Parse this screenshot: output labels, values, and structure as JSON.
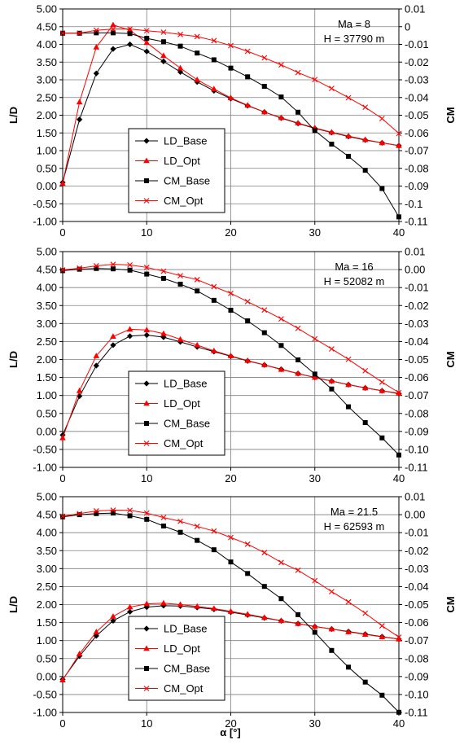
{
  "xlabel": "α [°]",
  "chart_data": [
    {
      "type": "line",
      "annotation": [
        "Ma = 8",
        "H = 37790 m"
      ],
      "ylabel": "L/D",
      "y2label": "CM",
      "xlim": [
        0,
        40
      ],
      "ylim": [
        -1.0,
        5.0
      ],
      "y2lim": [
        -0.11,
        0.01
      ],
      "xticks": [
        "0",
        "10",
        "20",
        "30",
        "40"
      ],
      "yticks": [
        "5.00",
        "4.50",
        "4.00",
        "3.50",
        "3.00",
        "2.50",
        "2.00",
        "1.50",
        "1.00",
        "0.50",
        "0.00",
        "-0.50",
        "-1.00"
      ],
      "y2ticks": [
        "0.01",
        "0",
        "-0.01",
        "-0.02",
        "-0.03",
        "-0.04",
        "-0.05",
        "-0.06",
        "-0.07",
        "-0.08",
        "-0.09",
        "-0.1",
        "-0.11"
      ],
      "grid": true,
      "legend_position": "lower-left",
      "series": [
        {
          "name": "LD_Base",
          "axis": "left",
          "color": "#000000",
          "marker": "diamond",
          "x": [
            0,
            2,
            4,
            6,
            8,
            10,
            12,
            14,
            16,
            18,
            20,
            22,
            24,
            26,
            28,
            30,
            32,
            34,
            36,
            38,
            40
          ],
          "y": [
            0.1,
            1.88,
            3.18,
            3.87,
            4.0,
            3.8,
            3.52,
            3.22,
            2.94,
            2.69,
            2.47,
            2.27,
            2.09,
            1.92,
            1.77,
            1.63,
            1.51,
            1.4,
            1.3,
            1.22,
            1.14
          ]
        },
        {
          "name": "LD_Opt",
          "axis": "left",
          "color": "#ff0000",
          "marker": "triangle",
          "x": [
            0,
            2,
            4,
            6,
            8,
            10,
            12,
            14,
            16,
            18,
            20,
            22,
            24,
            26,
            28,
            30,
            32,
            34,
            36,
            38,
            40
          ],
          "y": [
            0.07,
            2.37,
            3.92,
            4.55,
            4.4,
            4.05,
            3.68,
            3.33,
            3.0,
            2.74,
            2.49,
            2.28,
            2.09,
            1.93,
            1.78,
            1.64,
            1.52,
            1.41,
            1.31,
            1.22,
            1.14
          ]
        },
        {
          "name": "CM_Base",
          "axis": "right",
          "color": "#000000",
          "marker": "square",
          "x": [
            0,
            2,
            4,
            6,
            8,
            10,
            12,
            14,
            16,
            18,
            20,
            22,
            24,
            26,
            28,
            30,
            32,
            34,
            36,
            38,
            40
          ],
          "y": [
            -0.0037,
            -0.0037,
            -0.0035,
            -0.0035,
            -0.0039,
            -0.0066,
            -0.0085,
            -0.011,
            -0.0149,
            -0.0187,
            -0.0234,
            -0.0283,
            -0.0337,
            -0.0397,
            -0.0483,
            -0.0587,
            -0.0663,
            -0.0732,
            -0.0811,
            -0.0914,
            -0.1074
          ]
        },
        {
          "name": "CM_Opt",
          "axis": "right",
          "color": "#ff0000",
          "marker": "x",
          "x": [
            0,
            2,
            4,
            6,
            8,
            10,
            12,
            14,
            16,
            18,
            20,
            22,
            24,
            26,
            28,
            30,
            32,
            34,
            36,
            38,
            40
          ],
          "y": [
            -0.0037,
            -0.0037,
            -0.002,
            -0.0014,
            -0.0013,
            -0.0023,
            -0.0031,
            -0.0044,
            -0.0056,
            -0.0079,
            -0.0107,
            -0.0139,
            -0.0176,
            -0.0216,
            -0.0259,
            -0.0299,
            -0.0349,
            -0.0401,
            -0.0455,
            -0.0519,
            -0.0603
          ]
        }
      ]
    },
    {
      "type": "line",
      "annotation": [
        "Ma = 16",
        "H = 52082 m"
      ],
      "ylabel": "L/D",
      "y2label": "CM",
      "xlim": [
        0,
        40
      ],
      "ylim": [
        -1.0,
        5.0
      ],
      "y2lim": [
        -0.11,
        0.01
      ],
      "xticks": [
        "0",
        "10",
        "20",
        "30",
        "40"
      ],
      "yticks": [
        "5.00",
        "4.50",
        "4.00",
        "3.50",
        "3.00",
        "2.50",
        "2.00",
        "1.50",
        "1.00",
        "0.50",
        "0.00",
        "-0.50",
        "-1.00"
      ],
      "y2ticks": [
        "0.01",
        "0.00",
        "-0.01",
        "-0.02",
        "-0.03",
        "-0.04",
        "-0.05",
        "-0.06",
        "-0.07",
        "-0.08",
        "-0.09",
        "-0.10",
        "-0.11"
      ],
      "grid": true,
      "legend_position": "lower-left",
      "series": [
        {
          "name": "LD_Base",
          "axis": "left",
          "color": "#000000",
          "marker": "diamond",
          "x": [
            0,
            2,
            4,
            6,
            8,
            10,
            12,
            14,
            16,
            18,
            20,
            22,
            24,
            26,
            28,
            30,
            32,
            34,
            36,
            38,
            40
          ],
          "y": [
            -0.1,
            0.98,
            1.83,
            2.4,
            2.65,
            2.68,
            2.62,
            2.49,
            2.35,
            2.22,
            2.09,
            1.96,
            1.85,
            1.73,
            1.61,
            1.5,
            1.4,
            1.3,
            1.21,
            1.13,
            1.05
          ]
        },
        {
          "name": "LD_Opt",
          "axis": "left",
          "color": "#ff0000",
          "marker": "triangle",
          "x": [
            0,
            2,
            4,
            6,
            8,
            10,
            12,
            14,
            16,
            18,
            20,
            22,
            24,
            26,
            28,
            30,
            32,
            34,
            36,
            38,
            40
          ],
          "y": [
            -0.18,
            1.13,
            2.1,
            2.64,
            2.84,
            2.82,
            2.72,
            2.56,
            2.4,
            2.24,
            2.1,
            1.97,
            1.85,
            1.72,
            1.61,
            1.5,
            1.4,
            1.3,
            1.21,
            1.13,
            1.06
          ]
        },
        {
          "name": "CM_Base",
          "axis": "right",
          "color": "#000000",
          "marker": "square",
          "x": [
            0,
            2,
            4,
            6,
            8,
            10,
            12,
            14,
            16,
            18,
            20,
            22,
            24,
            26,
            28,
            30,
            32,
            34,
            36,
            38,
            40
          ],
          "y": [
            -0.0006,
            0.0002,
            0.0006,
            0.0004,
            -0.0003,
            -0.0025,
            -0.0049,
            -0.0081,
            -0.0119,
            -0.0171,
            -0.0226,
            -0.0285,
            -0.0351,
            -0.0422,
            -0.0502,
            -0.0581,
            -0.0664,
            -0.0763,
            -0.0851,
            -0.0936,
            -0.1031
          ]
        },
        {
          "name": "CM_Opt",
          "axis": "right",
          "color": "#ff0000",
          "marker": "x",
          "x": [
            0,
            2,
            4,
            6,
            8,
            10,
            12,
            14,
            16,
            18,
            20,
            22,
            24,
            26,
            28,
            30,
            32,
            34,
            36,
            38,
            40
          ],
          "y": [
            -0.0002,
            0.0008,
            0.0021,
            0.0029,
            0.0026,
            0.0012,
            -0.0009,
            -0.0034,
            -0.0056,
            -0.0095,
            -0.0132,
            -0.0178,
            -0.0225,
            -0.0274,
            -0.0327,
            -0.0385,
            -0.0441,
            -0.0499,
            -0.0563,
            -0.0626,
            -0.0684
          ]
        }
      ]
    },
    {
      "type": "line",
      "annotation": [
        "Ma = 21.5",
        "H = 62593 m"
      ],
      "ylabel": "L/D",
      "y2label": "CM",
      "xlim": [
        0,
        40
      ],
      "ylim": [
        -1.0,
        5.0
      ],
      "y2lim": [
        -0.11,
        0.01
      ],
      "xticks": [
        "0",
        "10",
        "20",
        "30",
        "40"
      ],
      "yticks": [
        "5.00",
        "4.50",
        "4.00",
        "3.50",
        "3.00",
        "2.50",
        "2.00",
        "1.50",
        "1.00",
        "0.50",
        "0.00",
        "-0.50",
        "-1.00"
      ],
      "y2ticks": [
        "0.01",
        "0.00",
        "-0.01",
        "-0.02",
        "-0.03",
        "-0.04",
        "-0.05",
        "-0.06",
        "-0.07",
        "-0.08",
        "-0.09",
        "-0.10",
        "-0.11"
      ],
      "grid": true,
      "legend_position": "lower-left",
      "series": [
        {
          "name": "LD_Base",
          "axis": "left",
          "color": "#000000",
          "marker": "diamond",
          "x": [
            0,
            2,
            4,
            6,
            8,
            10,
            12,
            14,
            16,
            18,
            20,
            22,
            24,
            26,
            28,
            30,
            32,
            34,
            36,
            38,
            40
          ],
          "y": [
            -0.08,
            0.57,
            1.13,
            1.55,
            1.8,
            1.93,
            1.97,
            1.96,
            1.92,
            1.87,
            1.79,
            1.71,
            1.63,
            1.55,
            1.47,
            1.39,
            1.32,
            1.25,
            1.18,
            1.11,
            1.04
          ]
        },
        {
          "name": "LD_Opt",
          "axis": "left",
          "color": "#ff0000",
          "marker": "triangle",
          "x": [
            0,
            2,
            4,
            6,
            8,
            10,
            12,
            14,
            16,
            18,
            20,
            22,
            24,
            26,
            28,
            30,
            32,
            34,
            36,
            38,
            40
          ],
          "y": [
            -0.1,
            0.63,
            1.24,
            1.67,
            1.93,
            2.02,
            2.04,
            2.0,
            1.95,
            1.89,
            1.81,
            1.73,
            1.64,
            1.55,
            1.47,
            1.39,
            1.32,
            1.24,
            1.17,
            1.1,
            1.04
          ]
        },
        {
          "name": "CM_Base",
          "axis": "right",
          "color": "#000000",
          "marker": "square",
          "x": [
            0,
            2,
            4,
            6,
            8,
            10,
            12,
            14,
            16,
            18,
            20,
            22,
            24,
            26,
            28,
            30,
            32,
            34,
            36,
            38,
            40
          ],
          "y": [
            -0.0012,
            0.0,
            0.0006,
            0.0009,
            -0.0006,
            -0.0026,
            -0.0063,
            -0.0098,
            -0.0143,
            -0.0195,
            -0.0263,
            -0.0327,
            -0.0399,
            -0.0467,
            -0.0556,
            -0.0654,
            -0.0755,
            -0.0848,
            -0.0931,
            -0.1004,
            -0.1099
          ]
        },
        {
          "name": "CM_Opt",
          "axis": "right",
          "color": "#ff0000",
          "marker": "x",
          "x": [
            0,
            2,
            4,
            6,
            8,
            10,
            12,
            14,
            16,
            18,
            20,
            22,
            24,
            26,
            28,
            30,
            32,
            34,
            36,
            38,
            40
          ],
          "y": [
            -0.0009,
            0.0006,
            0.0021,
            0.0025,
            0.0024,
            0.0009,
            -0.0016,
            -0.0037,
            -0.0065,
            -0.0091,
            -0.0127,
            -0.0164,
            -0.0211,
            -0.0266,
            -0.0309,
            -0.0367,
            -0.0428,
            -0.0485,
            -0.0548,
            -0.0618,
            -0.0681
          ]
        }
      ]
    }
  ]
}
